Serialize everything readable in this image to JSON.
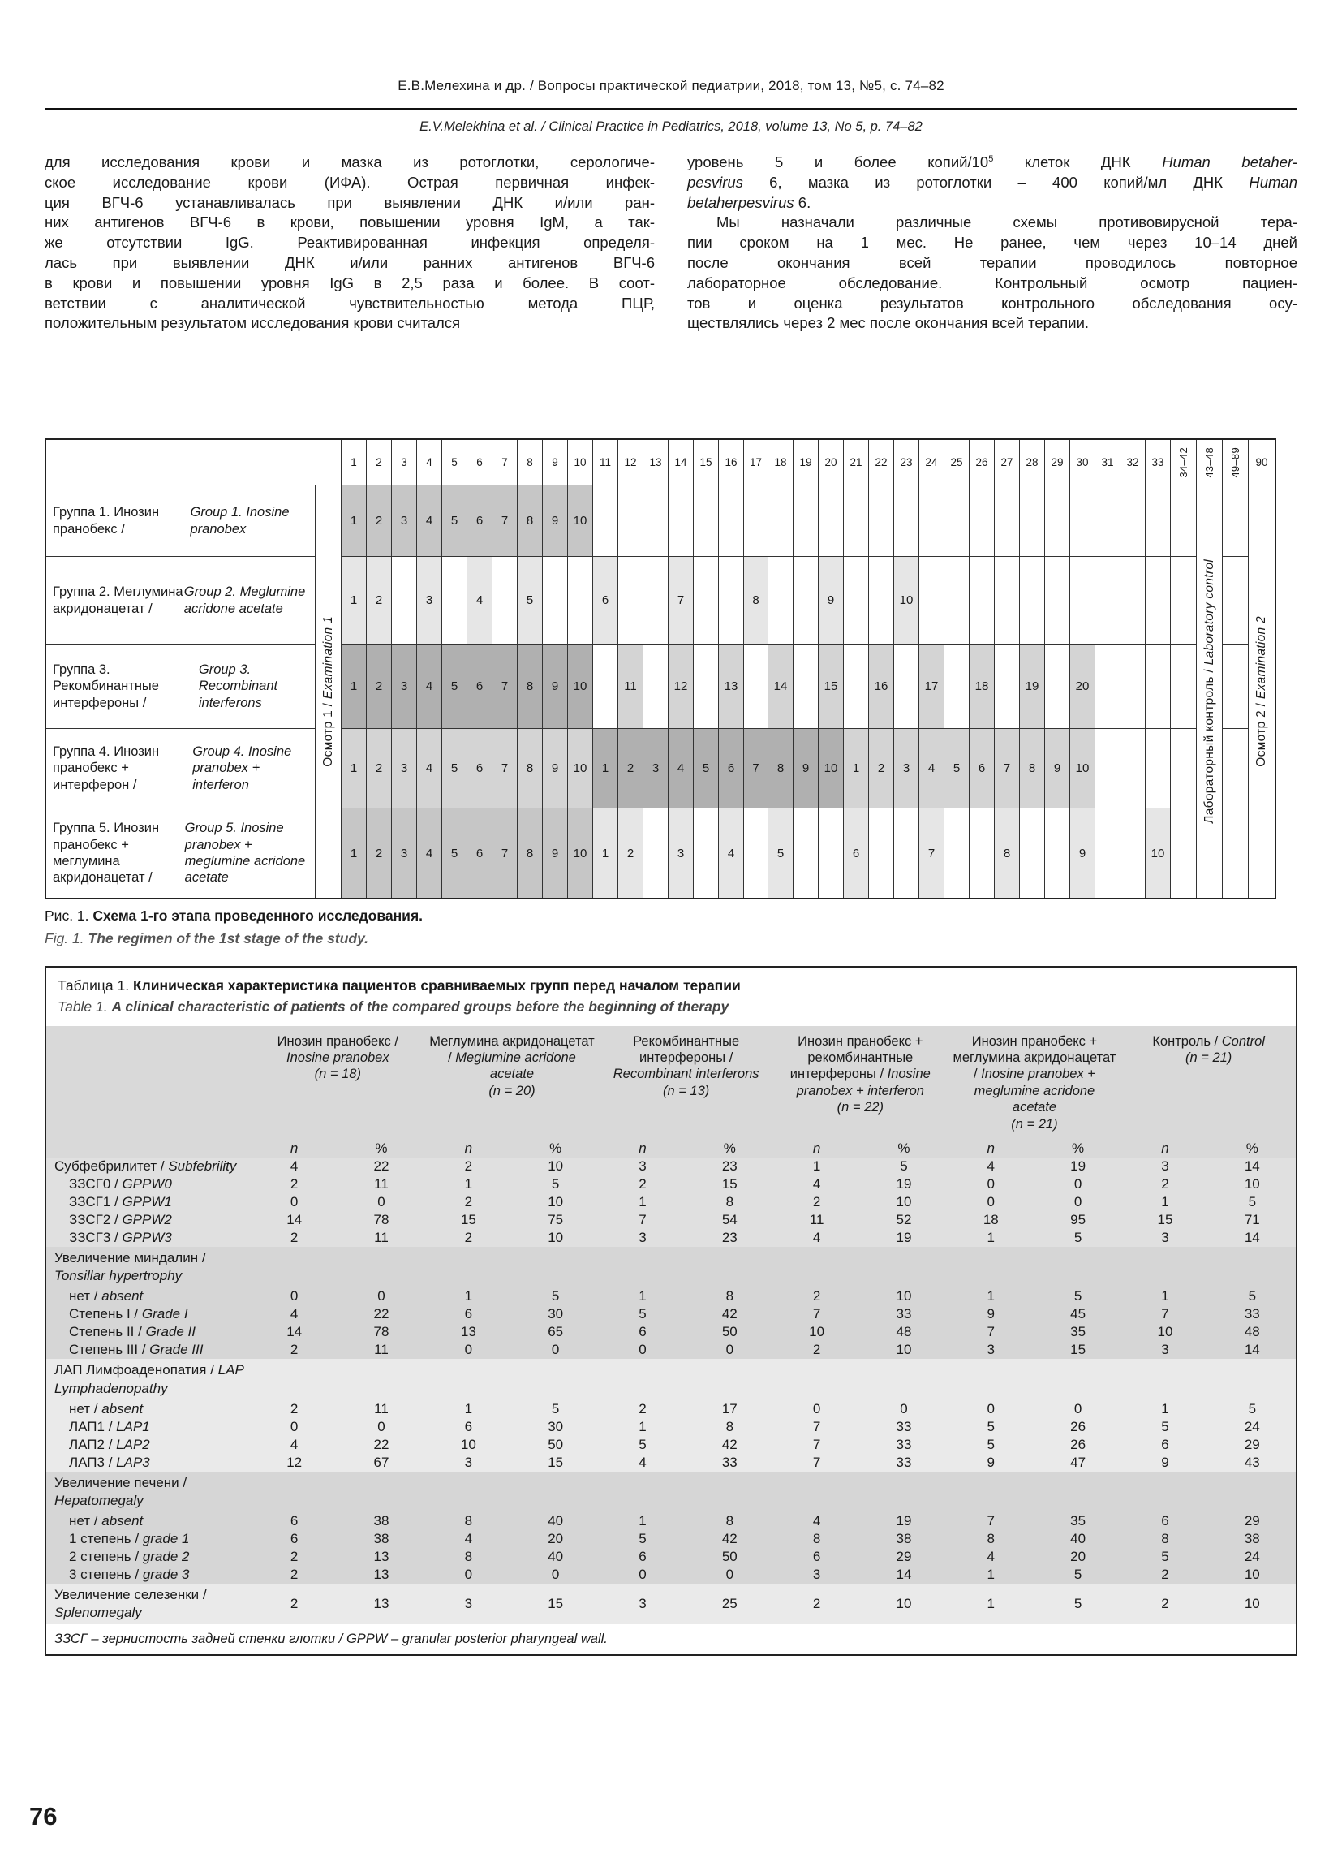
{
  "header": {
    "ru": "Е.В.Мелехина и др. / Вопросы практической педиатрии, 2018, том 13, №5, с. 74–82",
    "en": "E.V.Melekhina et al. / Clinical Practice in Pediatrics, 2018, volume 13, No 5, p. 74–82"
  },
  "page": {
    "number": "76"
  },
  "body": {
    "left_lines": [
      {
        "t": "для исследования крови и мазка из ротоглотки, серологиче-"
      },
      {
        "t": "ское исследование крови (ИФА). Острая первичная инфек-"
      },
      {
        "t": "ция ВГЧ-6 устанавливалась при выявлении ДНК и/или ран-"
      },
      {
        "t": "них антигенов ВГЧ-6 в крови, повышении уровня IgM, а так-"
      },
      {
        "t": "же отсутствии IgG. Реактивированная инфекция определя-"
      },
      {
        "t": "лась при выявлении ДНК и/или ранних антигенов ВГЧ-6"
      },
      {
        "t": "в крови и повышении уровня IgG в 2,5 раза и более. В соот-"
      },
      {
        "t": "ветствии с аналитической чувствительностью метода ПЦР,"
      },
      {
        "t": "положительным результатом исследования крови считался",
        "end": true
      }
    ],
    "right_lines": [
      {
        "t": "уровень 5 и более копий/10~5~ клеток ДНК *Human betaher-*"
      },
      {
        "t": "*pesvirus* 6, мазка из ротоглотки – 400 копий/мл ДНК *Human*"
      },
      {
        "t": "*betaherpesvirus* 6.",
        "end": true
      },
      {
        "t": "Мы назначали различные схемы противовирусной тера-",
        "indent": true
      },
      {
        "t": "пии сроком на 1 мес. Не ранее, чем через 10–14 дней"
      },
      {
        "t": "после окончания всей терапии проводилось повторное"
      },
      {
        "t": "лабораторное обследование. Контрольный осмотр пациен-"
      },
      {
        "t": "тов и оценка результатов контрольного обследования осу-"
      },
      {
        "t": "ществлялись через 2 мес после окончания всей терапии.",
        "end": true
      }
    ]
  },
  "figure": {
    "day_headers": [
      "1",
      "2",
      "3",
      "4",
      "5",
      "6",
      "7",
      "8",
      "9",
      "10",
      "11",
      "12",
      "13",
      "14",
      "15",
      "16",
      "17",
      "18",
      "19",
      "20",
      "21",
      "22",
      "23",
      "24",
      "25",
      "26",
      "27",
      "28",
      "29",
      "30",
      "31",
      "32",
      "33"
    ],
    "rotated_headers": [
      "34–42",
      "43–48",
      "49–89"
    ],
    "last_header": "90",
    "exam1_ru": "Осмотр 1 /",
    "exam1_en": "Examination 1",
    "lab_ru": "Лабораторный контроль /",
    "lab_en": "Laboratory control",
    "exam2_ru": "Осмотр 2 /",
    "exam2_en": "Examination 2",
    "colors": {
      "dark": "#b0b0b0",
      "mid": "#c6c6c6",
      "light": "#d4d4d4",
      "xlight": "#e6e6e6"
    },
    "rows": [
      {
        "ru": "Группа 1. Инозин пранобекс /",
        "en": "Group 1. Inosine pranobex",
        "cells": [
          [
            1,
            "1",
            "mid"
          ],
          [
            2,
            "2",
            "mid"
          ],
          [
            3,
            "3",
            "mid"
          ],
          [
            4,
            "4",
            "mid"
          ],
          [
            5,
            "5",
            "mid"
          ],
          [
            6,
            "6",
            "mid"
          ],
          [
            7,
            "7",
            "mid"
          ],
          [
            8,
            "8",
            "mid"
          ],
          [
            9,
            "9",
            "mid"
          ],
          [
            10,
            "10",
            "mid"
          ]
        ]
      },
      {
        "ru": "Группа 2. Меглумина акридонацетат /",
        "en": "Group 2. Meglumine acridone acetate",
        "cells": [
          [
            1,
            "1",
            "xlight"
          ],
          [
            2,
            "2",
            "xlight"
          ],
          [
            4,
            "3",
            "xlight"
          ],
          [
            6,
            "4",
            "xlight"
          ],
          [
            8,
            "5",
            "xlight"
          ],
          [
            11,
            "6",
            "xlight"
          ],
          [
            14,
            "7",
            "xlight"
          ],
          [
            17,
            "8",
            "xlight"
          ],
          [
            20,
            "9",
            "xlight"
          ],
          [
            23,
            "10",
            "xlight"
          ]
        ]
      },
      {
        "ru": "Группа 3. Рекомбинантные интерфероны /",
        "en": "Group 3. Recombinant interferons",
        "cells": [
          [
            1,
            "1",
            "dark"
          ],
          [
            2,
            "2",
            "dark"
          ],
          [
            3,
            "3",
            "dark"
          ],
          [
            4,
            "4",
            "dark"
          ],
          [
            5,
            "5",
            "dark"
          ],
          [
            6,
            "6",
            "dark"
          ],
          [
            7,
            "7",
            "dark"
          ],
          [
            8,
            "8",
            "dark"
          ],
          [
            9,
            "9",
            "dark"
          ],
          [
            10,
            "10",
            "dark"
          ],
          [
            12,
            "11",
            "light"
          ],
          [
            14,
            "12",
            "light"
          ],
          [
            16,
            "13",
            "light"
          ],
          [
            18,
            "14",
            "light"
          ],
          [
            20,
            "15",
            "light"
          ],
          [
            22,
            "16",
            "light"
          ],
          [
            24,
            "17",
            "light"
          ],
          [
            26,
            "18",
            "light"
          ],
          [
            28,
            "19",
            "light"
          ],
          [
            30,
            "20",
            "light"
          ]
        ]
      },
      {
        "ru": "Группа 4. Инозин пранобекс + интерферон /",
        "en": "Group 4. Inosine pranobex + interferon",
        "cells": [
          [
            1,
            "1",
            "light"
          ],
          [
            2,
            "2",
            "light"
          ],
          [
            3,
            "3",
            "light"
          ],
          [
            4,
            "4",
            "light"
          ],
          [
            5,
            "5",
            "light"
          ],
          [
            6,
            "6",
            "light"
          ],
          [
            7,
            "7",
            "light"
          ],
          [
            8,
            "8",
            "light"
          ],
          [
            9,
            "9",
            "light"
          ],
          [
            10,
            "10",
            "light"
          ],
          [
            11,
            "1",
            "dark"
          ],
          [
            12,
            "2",
            "dark"
          ],
          [
            13,
            "3",
            "dark"
          ],
          [
            14,
            "4",
            "dark"
          ],
          [
            15,
            "5",
            "dark"
          ],
          [
            16,
            "6",
            "dark"
          ],
          [
            17,
            "7",
            "dark"
          ],
          [
            18,
            "8",
            "dark"
          ],
          [
            19,
            "9",
            "dark"
          ],
          [
            20,
            "10",
            "dark"
          ],
          [
            21,
            "1",
            "light"
          ],
          [
            22,
            "2",
            "light"
          ],
          [
            23,
            "3",
            "light"
          ],
          [
            24,
            "4",
            "light"
          ],
          [
            25,
            "5",
            "light"
          ],
          [
            26,
            "6",
            "light"
          ],
          [
            27,
            "7",
            "light"
          ],
          [
            28,
            "8",
            "light"
          ],
          [
            29,
            "9",
            "light"
          ],
          [
            30,
            "10",
            "light"
          ]
        ]
      },
      {
        "ru": "Группа 5. Инозин пранобекс + меглумина акридонацетат /",
        "en": "Group 5. Inosine pranobex + meglumine acridone acetate",
        "cells": [
          [
            1,
            "1",
            "mid"
          ],
          [
            2,
            "2",
            "mid"
          ],
          [
            3,
            "3",
            "mid"
          ],
          [
            4,
            "4",
            "mid"
          ],
          [
            5,
            "5",
            "mid"
          ],
          [
            6,
            "6",
            "mid"
          ],
          [
            7,
            "7",
            "mid"
          ],
          [
            8,
            "8",
            "mid"
          ],
          [
            9,
            "9",
            "mid"
          ],
          [
            10,
            "10",
            "mid"
          ],
          [
            11,
            "1",
            "xlight"
          ],
          [
            12,
            "2",
            "xlight"
          ],
          [
            14,
            "3",
            "xlight"
          ],
          [
            16,
            "4",
            "xlight"
          ],
          [
            18,
            "5",
            "xlight"
          ],
          [
            21,
            "6",
            "xlight"
          ],
          [
            24,
            "7",
            "xlight"
          ],
          [
            27,
            "8",
            "xlight"
          ],
          [
            30,
            "9",
            "xlight"
          ],
          [
            33,
            "10",
            "xlight"
          ]
        ]
      }
    ],
    "caption_ru_prefix": "Рис. 1.",
    "caption_ru": "Схема 1-го этапа проведенного исследования.",
    "caption_en_prefix": "Fig. 1.",
    "caption_en": "The regimen of the 1st stage of the study."
  },
  "table": {
    "title_ru_prefix": "Таблица 1.",
    "title_ru": "Клиническая характеристика пациентов сравниваемых групп перед началом терапии",
    "title_en_prefix": "Table 1.",
    "title_en": "A clinical characteristic of patients of the compared groups before the beginning of therapy",
    "n_label": "n",
    "pct_label": "%",
    "groups": [
      {
        "ru": "Инозин пранобекс /",
        "en": "Inosine pranobex",
        "n": "(n = 18)"
      },
      {
        "ru": "Меглумина акридонацетат /",
        "en": "Meglumine acridone acetate",
        "n": "(n = 20)"
      },
      {
        "ru": "Рекомбинантные интерфероны /",
        "en": "Recombinant interferons",
        "n": "(n = 13)"
      },
      {
        "ru": "Инозин пранобекс + рекомбинантные интерфероны /",
        "en": "Inosine pranobex + interferon",
        "n": "(n = 22)"
      },
      {
        "ru": "Инозин пранобекс + меглумина акридонацетат /",
        "en": "Inosine pranobex + meglumine acridone acetate",
        "n": "(n = 21)"
      },
      {
        "ru": "Контроль /",
        "en": "Control",
        "n": "(n = 21)"
      }
    ],
    "rows": [
      {
        "type": "data",
        "band": "a",
        "indent": false,
        "ru": "Субфебрилитет",
        "en": "Subfebrility",
        "v": [
          "4",
          "22",
          "2",
          "10",
          "3",
          "23",
          "1",
          "5",
          "4",
          "19",
          "3",
          "14"
        ]
      },
      {
        "type": "data",
        "band": "a",
        "indent": true,
        "ru": "ЗЗСГ0",
        "en": "GPPW0",
        "v": [
          "2",
          "11",
          "1",
          "5",
          "2",
          "15",
          "4",
          "19",
          "0",
          "0",
          "2",
          "10"
        ]
      },
      {
        "type": "data",
        "band": "a",
        "indent": true,
        "ru": "ЗЗСГ1",
        "en": "GPPW1",
        "v": [
          "0",
          "0",
          "2",
          "10",
          "1",
          "8",
          "2",
          "10",
          "0",
          "0",
          "1",
          "5"
        ]
      },
      {
        "type": "data",
        "band": "a",
        "indent": true,
        "ru": "ЗЗСГ2",
        "en": "GPPW2",
        "v": [
          "14",
          "78",
          "15",
          "75",
          "7",
          "54",
          "11",
          "52",
          "18",
          "95",
          "15",
          "71"
        ]
      },
      {
        "type": "data",
        "band": "a",
        "indent": true,
        "ru": "ЗЗСГ3",
        "en": "GPPW3",
        "v": [
          "2",
          "11",
          "2",
          "10",
          "3",
          "23",
          "4",
          "19",
          "1",
          "5",
          "3",
          "14"
        ]
      },
      {
        "type": "section",
        "band": "b",
        "l1": "Увеличение миндалин /",
        "l2": "Tonsillar hypertrophy"
      },
      {
        "type": "data",
        "band": "b",
        "indent": true,
        "ru": "нет",
        "en": "absent",
        "v": [
          "0",
          "0",
          "1",
          "5",
          "1",
          "8",
          "2",
          "10",
          "1",
          "5",
          "1",
          "5"
        ]
      },
      {
        "type": "data",
        "band": "b",
        "indent": true,
        "ru": "Степень I",
        "en": "Grade I",
        "v": [
          "4",
          "22",
          "6",
          "30",
          "5",
          "42",
          "7",
          "33",
          "9",
          "45",
          "7",
          "33"
        ]
      },
      {
        "type": "data",
        "band": "b",
        "indent": true,
        "ru": "Степень II",
        "en": "Grade II",
        "v": [
          "14",
          "78",
          "13",
          "65",
          "6",
          "50",
          "10",
          "48",
          "7",
          "35",
          "10",
          "48"
        ]
      },
      {
        "type": "data",
        "band": "b",
        "indent": true,
        "ru": "Степень III",
        "en": "Grade III",
        "v": [
          "2",
          "11",
          "0",
          "0",
          "0",
          "0",
          "2",
          "10",
          "3",
          "15",
          "3",
          "14"
        ]
      },
      {
        "type": "section",
        "band": "c",
        "l1": "ЛАП Лимфоаденопатия / *LAP*",
        "l2": "Lymphadenopathy"
      },
      {
        "type": "data",
        "band": "c",
        "indent": true,
        "ru": "нет",
        "en": "absent",
        "v": [
          "2",
          "11",
          "1",
          "5",
          "2",
          "17",
          "0",
          "0",
          "0",
          "0",
          "1",
          "5"
        ]
      },
      {
        "type": "data",
        "band": "c",
        "indent": true,
        "ru": "ЛАП1",
        "en": "LAP1",
        "v": [
          "0",
          "0",
          "6",
          "30",
          "1",
          "8",
          "7",
          "33",
          "5",
          "26",
          "5",
          "24"
        ]
      },
      {
        "type": "data",
        "band": "c",
        "indent": true,
        "ru": "ЛАП2",
        "en": "LAP2",
        "v": [
          "4",
          "22",
          "10",
          "50",
          "5",
          "42",
          "7",
          "33",
          "5",
          "26",
          "6",
          "29"
        ]
      },
      {
        "type": "data",
        "band": "c",
        "indent": true,
        "ru": "ЛАП3",
        "en": "LAP3",
        "v": [
          "12",
          "67",
          "3",
          "15",
          "4",
          "33",
          "7",
          "33",
          "9",
          "47",
          "9",
          "43"
        ]
      },
      {
        "type": "section",
        "band": "b",
        "l1": "Увеличение печени /",
        "l2": "Hepatomegaly"
      },
      {
        "type": "data",
        "band": "b",
        "indent": true,
        "ru": "нет",
        "en": "absent",
        "v": [
          "6",
          "38",
          "8",
          "40",
          "1",
          "8",
          "4",
          "19",
          "7",
          "35",
          "6",
          "29"
        ]
      },
      {
        "type": "data",
        "band": "b",
        "indent": true,
        "ru": "1 степень",
        "en": "grade 1",
        "v": [
          "6",
          "38",
          "4",
          "20",
          "5",
          "42",
          "8",
          "38",
          "8",
          "40",
          "8",
          "38"
        ]
      },
      {
        "type": "data",
        "band": "b",
        "indent": true,
        "ru": "2 степень",
        "en": "grade 2",
        "v": [
          "2",
          "13",
          "8",
          "40",
          "6",
          "50",
          "6",
          "29",
          "4",
          "20",
          "5",
          "24"
        ]
      },
      {
        "type": "data",
        "band": "b",
        "indent": true,
        "ru": "3 степень",
        "en": "grade 3",
        "v": [
          "2",
          "13",
          "0",
          "0",
          "0",
          "0",
          "3",
          "14",
          "1",
          "5",
          "2",
          "10"
        ]
      },
      {
        "type": "data2",
        "band": "c",
        "l1": "Увеличение селезенки /",
        "l2": "Splenomegaly",
        "v": [
          "2",
          "13",
          "3",
          "15",
          "3",
          "25",
          "2",
          "10",
          "1",
          "5",
          "2",
          "10"
        ]
      }
    ],
    "footnote": "ЗЗСГ – зернистость задней стенки глотки / GPPW – granular posterior pharyngeal wall."
  }
}
